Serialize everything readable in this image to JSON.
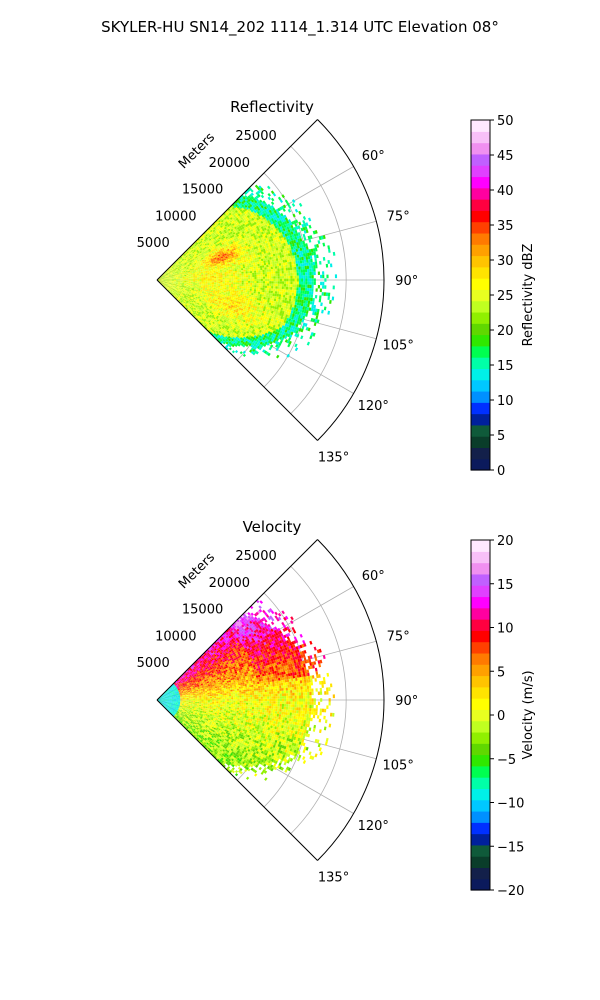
{
  "figure": {
    "suptitle": "SKYLER-HU  SN14_202  1114_1.314 UTC Elevation 08°"
  },
  "chart_data": [
    {
      "type": "polar-sector",
      "title": "Reflectivity",
      "rlabel": "Meters",
      "r_ticks": [
        5000,
        10000,
        15000,
        20000,
        25000
      ],
      "r_tick_labels": [
        "5000",
        "10000",
        "15000",
        "20000",
        "25000"
      ],
      "rlim": [
        0,
        30000
      ],
      "theta_range_deg": [
        45,
        135
      ],
      "theta_ticks": [
        45,
        60,
        75,
        90,
        105,
        120,
        135
      ],
      "theta_tick_labels": [
        "",
        "60°",
        "75°",
        "90°",
        "105°",
        "120°",
        "135°"
      ],
      "data_range_m": [
        0,
        22000
      ],
      "colorbar": {
        "label": "Reflectivity dBZ",
        "range": [
          0,
          50
        ],
        "ticks": [
          0,
          5,
          10,
          15,
          20,
          25,
          30,
          35,
          40,
          45,
          50
        ],
        "tick_labels": [
          "0",
          "5",
          "10",
          "15",
          "20",
          "25",
          "30",
          "35",
          "40",
          "45",
          "50"
        ]
      },
      "field": {
        "base_value": 24,
        "noise": 3,
        "edge_value": 16,
        "blobs": [
          {
            "theta": 70,
            "r": 9000,
            "value": 33,
            "sigma_r": 2500,
            "sigma_t": 6
          },
          {
            "theta": 108,
            "r": 10000,
            "value": 28,
            "sigma_r": 3500,
            "sigma_t": 8
          },
          {
            "theta": 88,
            "r": 7000,
            "value": 27,
            "sigma_r": 4000,
            "sigma_t": 12
          }
        ]
      }
    },
    {
      "type": "polar-sector",
      "title": "Velocity",
      "rlabel": "Meters",
      "r_ticks": [
        5000,
        10000,
        15000,
        20000,
        25000
      ],
      "r_tick_labels": [
        "5000",
        "10000",
        "15000",
        "20000",
        "25000"
      ],
      "rlim": [
        0,
        30000
      ],
      "theta_range_deg": [
        45,
        135
      ],
      "theta_ticks": [
        45,
        60,
        75,
        90,
        105,
        120,
        135
      ],
      "theta_tick_labels": [
        "",
        "60°",
        "75°",
        "90°",
        "105°",
        "120°",
        "135°"
      ],
      "data_range_m": [
        0,
        22000
      ],
      "colorbar": {
        "label": "Velocity (m/s)",
        "range": [
          -20,
          20
        ],
        "ticks": [
          -20,
          -15,
          -10,
          -5,
          0,
          5,
          10,
          15,
          20
        ],
        "tick_labels": [
          "−20",
          "−15",
          "−10",
          "−5",
          "0",
          "5",
          "10",
          "15",
          "20"
        ]
      },
      "field": {
        "near_value": -9,
        "near_range_m": 3000,
        "left_value": 12,
        "center_value": 1,
        "right_value": -3,
        "noise": 1.5
      }
    }
  ],
  "colormap": [
    "#0b1a5c",
    "#13204a",
    "#0a3d2a",
    "#0f5a3a",
    "#00209c",
    "#0030ff",
    "#0090ff",
    "#00c8ff",
    "#00f0e8",
    "#00ffa8",
    "#00ff50",
    "#30e800",
    "#60d800",
    "#90f000",
    "#c0ff20",
    "#e8ff20",
    "#ffff00",
    "#ffe400",
    "#ffc400",
    "#ffa000",
    "#ff7a00",
    "#ff4000",
    "#ff0000",
    "#ff0040",
    "#ff00a0",
    "#ff00ff",
    "#e040ff",
    "#c060ff",
    "#f090f0",
    "#f8c0f8",
    "#ffe8ff"
  ]
}
